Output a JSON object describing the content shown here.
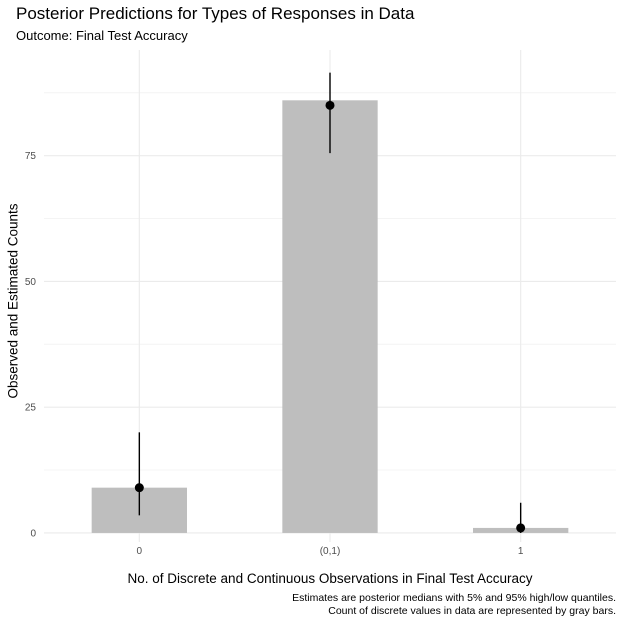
{
  "chart_data": {
    "type": "bar",
    "title": "Posterior Predictions for Types of Responses in Data",
    "subtitle": "Outcome: Final Test Accuracy",
    "xlabel": "No. of Discrete and Continuous Observations in Final Test Accuracy",
    "ylabel": "Observed and Estimated Counts",
    "categories": [
      "0",
      "(0,1)",
      "1"
    ],
    "bar_values": [
      9,
      86,
      1
    ],
    "estimates": [
      {
        "median": 9,
        "low": 3.5,
        "high": 20
      },
      {
        "median": 85,
        "low": 75.5,
        "high": 91.5
      },
      {
        "median": 1,
        "low": 0,
        "high": 6
      }
    ],
    "ylim": [
      -1.8,
      96
    ],
    "y_ticks": [
      0,
      25,
      50,
      75
    ],
    "grid": true,
    "bar_color": "#bebebe",
    "point_color": "#000000",
    "caption": [
      "Estimates are posterior medians with 5% and 95% high/low quantiles.",
      "Count of discrete values in data are represented by gray bars."
    ]
  }
}
